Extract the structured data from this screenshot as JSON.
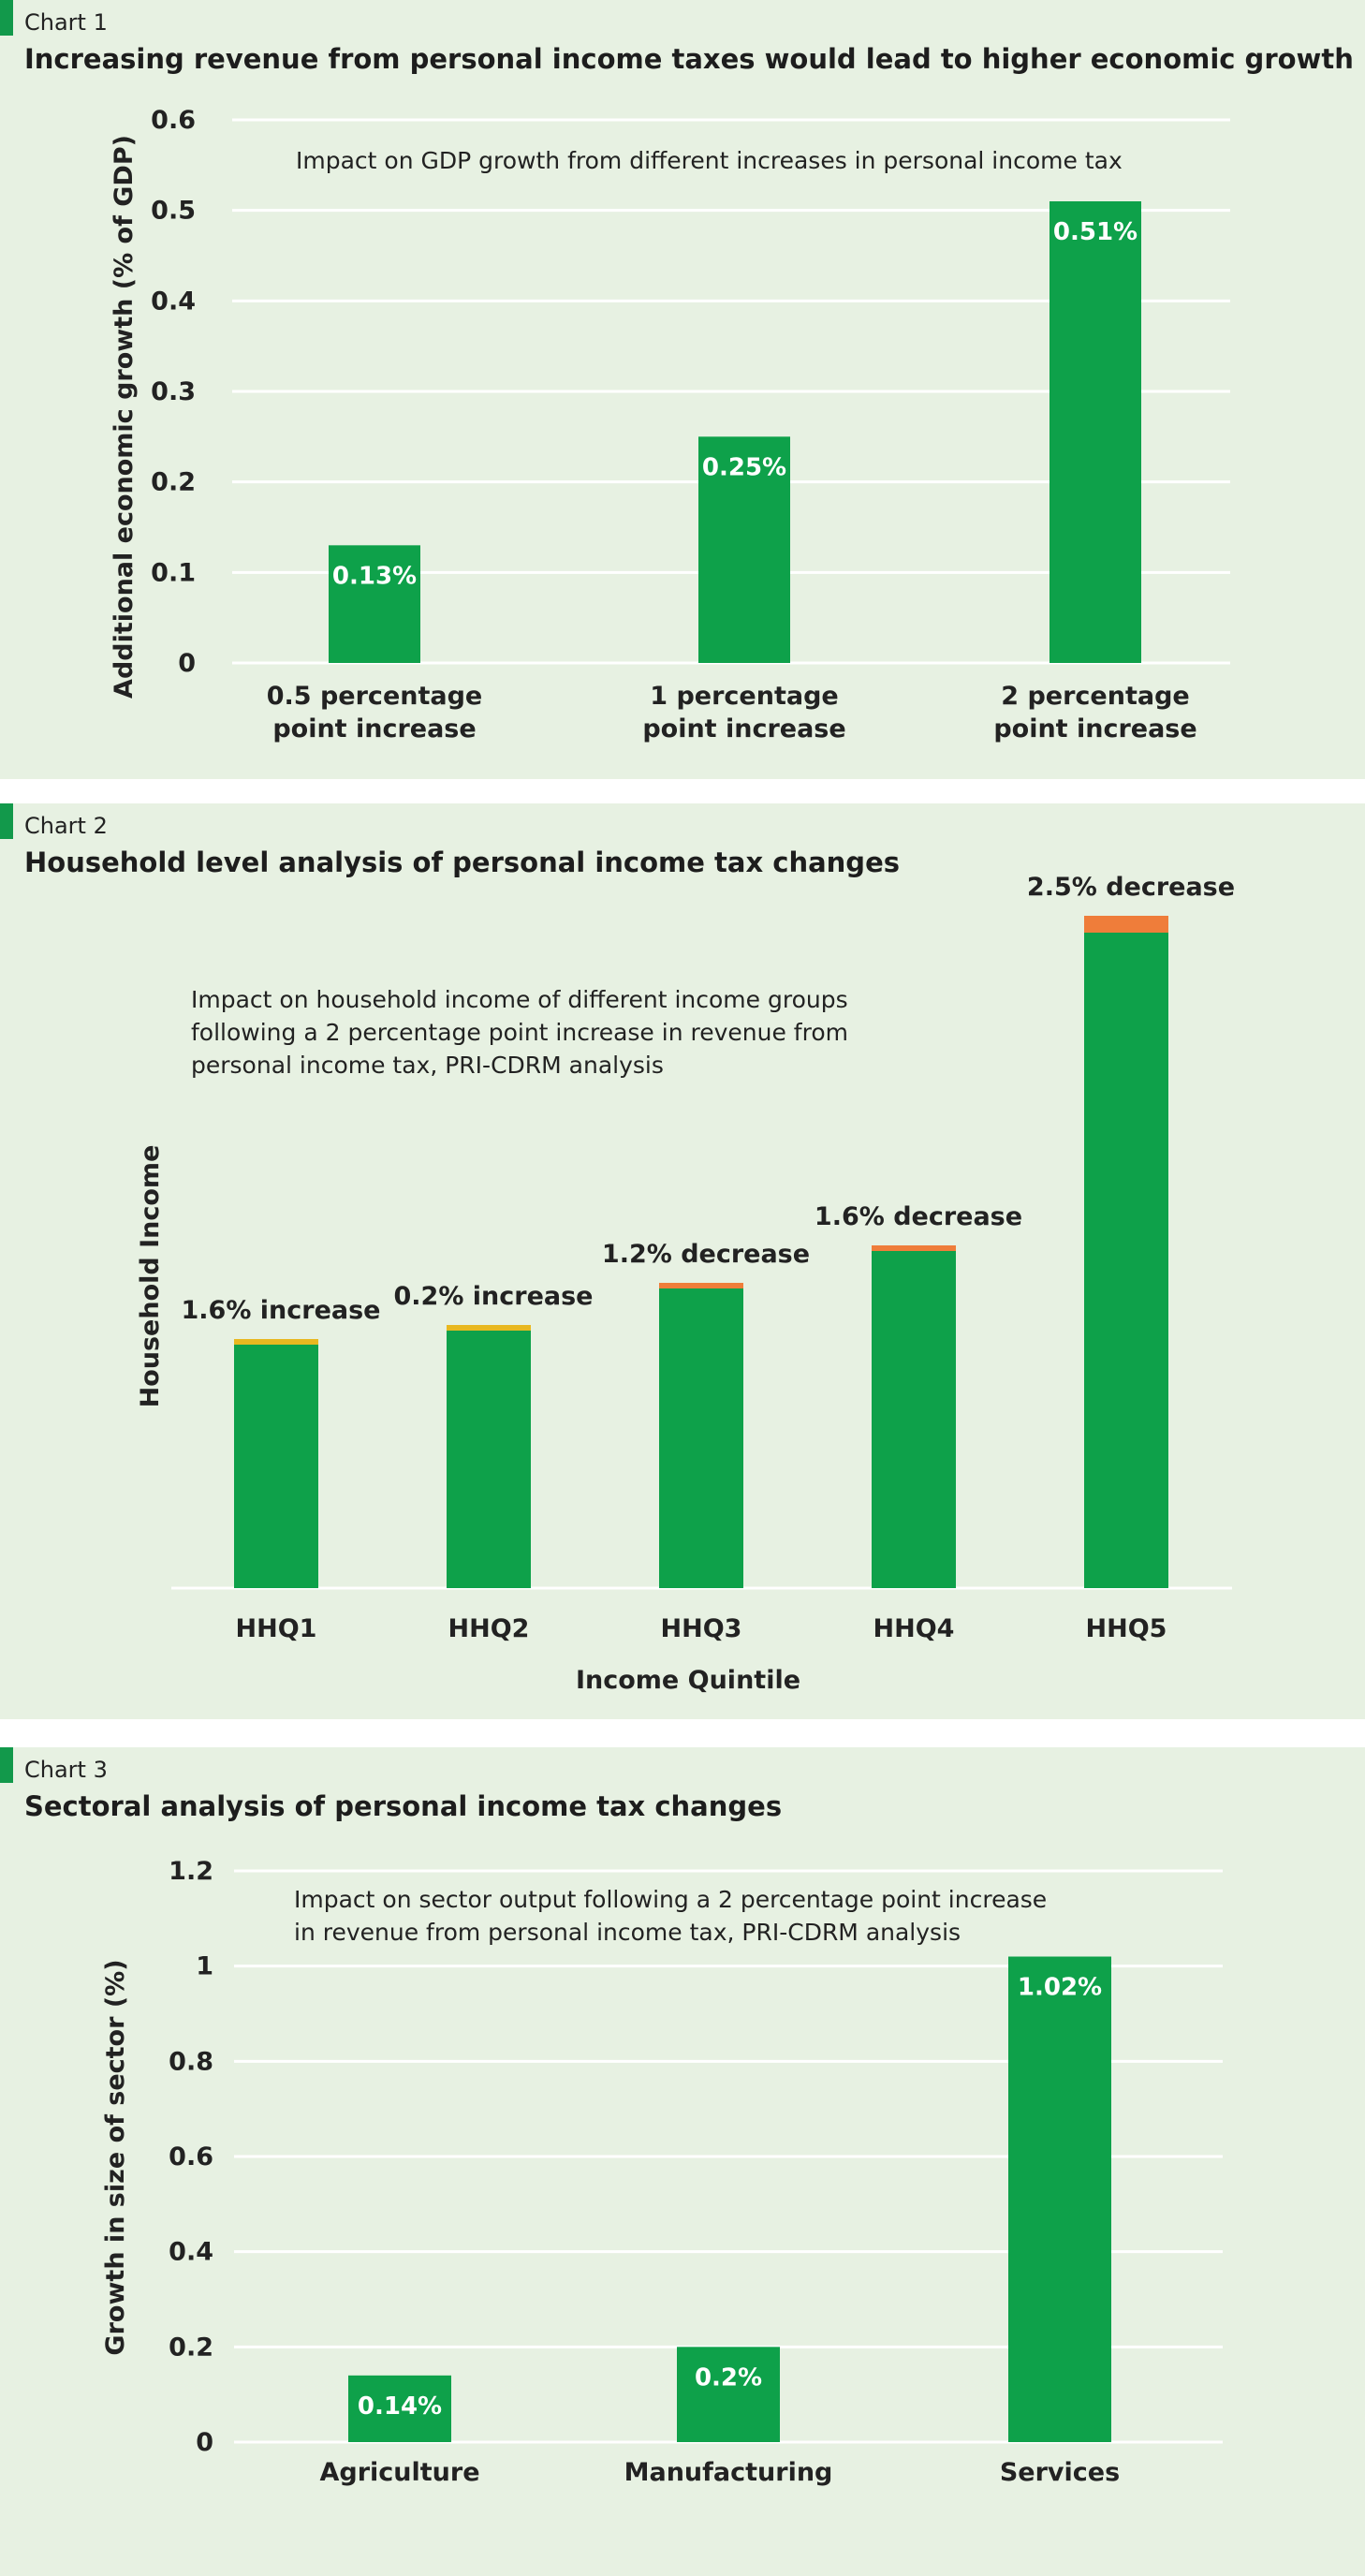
{
  "colors": {
    "background": "#e7f1e2",
    "bar": "#0ea14a",
    "accent": "#12994b",
    "increase_cap": "#e8b820",
    "decrease_cap": "#ef7d3a",
    "gridline": "#ffffff"
  },
  "charts": [
    {
      "label": "Chart 1",
      "title": "Increasing revenue from personal income taxes would lead to higher economic growth"
    },
    {
      "label": "Chart 2",
      "title": "Household level analysis of personal income tax changes"
    },
    {
      "label": "Chart 3",
      "title": "Sectoral analysis of personal income tax changes"
    }
  ],
  "chart_data": [
    {
      "type": "bar",
      "subtitle": "Impact on GDP growth from different increases in personal income tax",
      "ylabel": "Additional economic growth (% of GDP)",
      "xlabel": "",
      "ylim": [
        0,
        0.6
      ],
      "yticks": [
        "0",
        "0.1",
        "0.2",
        "0.3",
        "0.4",
        "0.5",
        "0.6"
      ],
      "categories": [
        [
          "0.5 percentage",
          "point increase"
        ],
        [
          "1 percentage",
          "point increase"
        ],
        [
          "2 percentage",
          "point increase"
        ]
      ],
      "values": [
        0.13,
        0.25,
        0.51
      ],
      "data_labels": [
        "0.13%",
        "0.25%",
        "0.51%"
      ],
      "grid": true
    },
    {
      "type": "bar",
      "subtitle": [
        "Impact on household income of different income groups",
        "following a 2 percentage point increase in revenue from",
        "personal income tax, PRI-CDRM analysis"
      ],
      "ylabel": "Household Income",
      "xlabel": "Income Quintile",
      "categories": [
        "HHQ1",
        "HHQ2",
        "HHQ3",
        "HHQ4",
        "HHQ5"
      ],
      "values": [
        0.26,
        0.275,
        0.32,
        0.36,
        0.7
      ],
      "changes": [
        1.6,
        0.2,
        -1.2,
        -1.6,
        -2.5
      ],
      "data_labels": [
        "1.6% increase",
        "0.2% increase",
        "1.2% decrease",
        "1.6% decrease",
        "2.5% decrease"
      ],
      "grid": false
    },
    {
      "type": "bar",
      "subtitle": [
        "Impact on sector output following a 2 percentage point increase",
        "in revenue from personal income tax, PRI-CDRM analysis"
      ],
      "ylabel": "Growth in size of sector (%)",
      "xlabel": "",
      "ylim": [
        0,
        1.2
      ],
      "yticks": [
        "0",
        "0.2",
        "0.4",
        "0.6",
        "0.8",
        "1",
        "1.2"
      ],
      "categories": [
        "Agriculture",
        "Manufacturing",
        "Services"
      ],
      "values": [
        0.14,
        0.2,
        1.02
      ],
      "data_labels": [
        "0.14%",
        "0.2%",
        "1.02%"
      ],
      "grid": true
    }
  ]
}
